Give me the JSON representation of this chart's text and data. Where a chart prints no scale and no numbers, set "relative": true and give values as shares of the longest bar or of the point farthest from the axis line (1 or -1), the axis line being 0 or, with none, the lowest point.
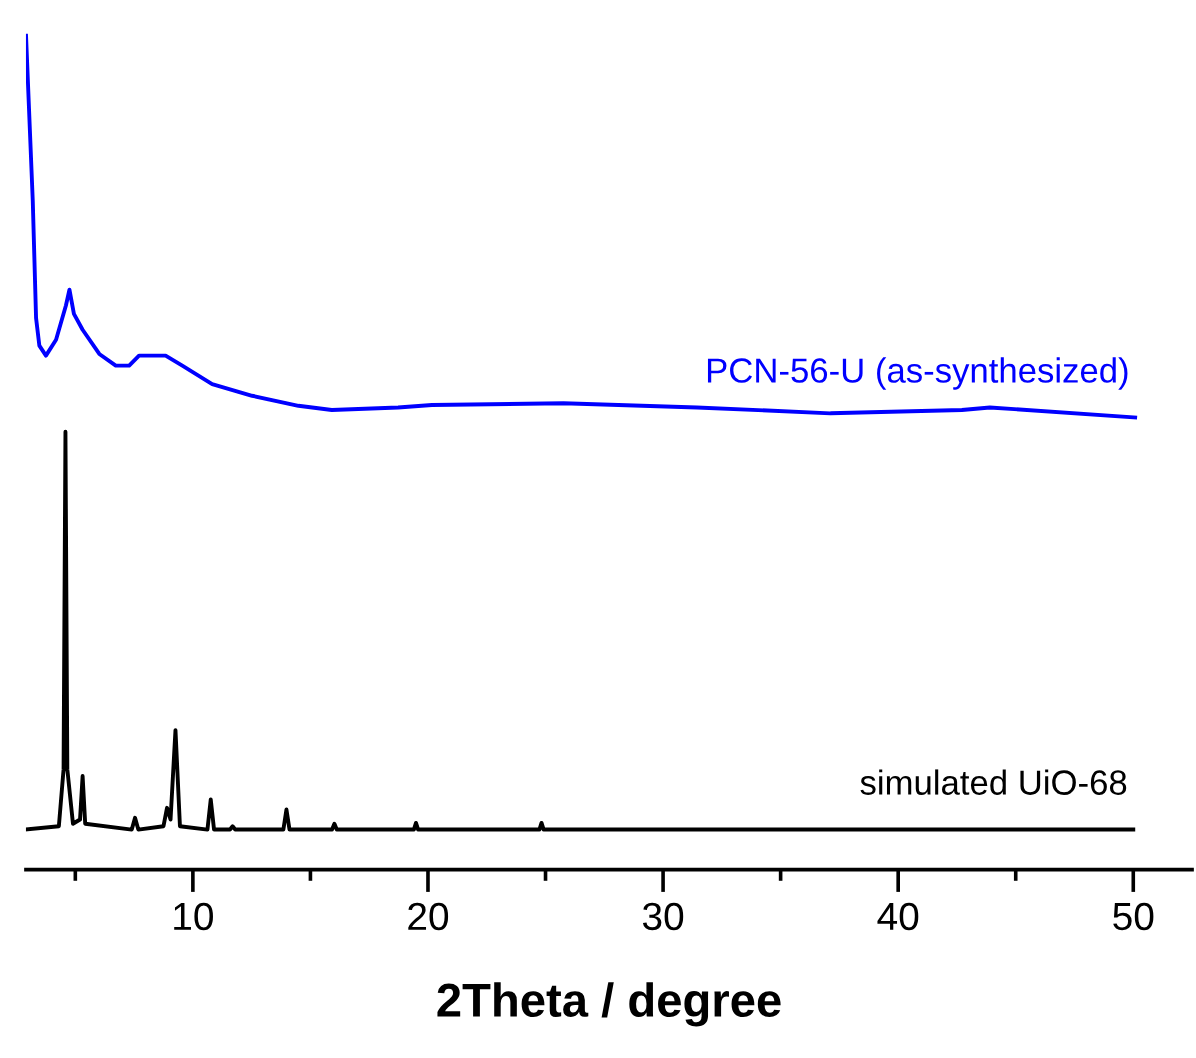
{
  "chart_data": {
    "type": "line",
    "relative": true,
    "xlabel": "2Theta / degree",
    "xlim": [
      2.9,
      52.5
    ],
    "xticks": [
      {
        "value": 5,
        "label": null
      },
      10,
      {
        "value": 15,
        "label": null
      },
      20,
      {
        "value": 25,
        "label": null
      },
      30,
      {
        "value": 35,
        "label": null
      },
      40,
      {
        "value": 45,
        "label": null
      },
      50
    ],
    "tick_labels": "x",
    "grid": false,
    "legend": false,
    "marker": "none",
    "line_style": "solid",
    "series": [
      {
        "name": "PCN-56-U (as-synthesized)",
        "color": "#0000ff",
        "x": [
          2.9,
          3.19,
          3.33,
          3.47,
          3.75,
          4.18,
          4.6,
          4.75,
          4.94,
          5.31,
          6.02,
          6.72,
          7.29,
          7.71,
          8.84,
          9.55,
          10.82,
          12.52,
          14.49,
          15.91,
          18.73,
          20.17,
          25.76,
          31.44,
          37.12,
          42.71,
          43.9,
          50.08
        ],
        "values": [
          1.0,
          0.8,
          0.66,
          0.627,
          0.615,
          0.634,
          0.675,
          0.694,
          0.665,
          0.646,
          0.617,
          0.603,
          0.603,
          0.615,
          0.615,
          0.603,
          0.581,
          0.567,
          0.555,
          0.55,
          0.553,
          0.556,
          0.558,
          0.553,
          0.546,
          0.55,
          0.553,
          0.541
        ]
      },
      {
        "name": "simulated UiO-68",
        "color": "#000000",
        "x": [
          2.9,
          4.3,
          4.5,
          4.58,
          4.66,
          4.9,
          5.2,
          5.31,
          5.42,
          7.4,
          7.54,
          7.68,
          8.75,
          8.9,
          9.05,
          9.26,
          9.45,
          10.62,
          10.76,
          10.9,
          11.58,
          11.69,
          11.8,
          13.85,
          13.98,
          14.11,
          15.92,
          16.02,
          16.12,
          19.4,
          19.49,
          19.58,
          24.74,
          24.83,
          24.92,
          50.0
        ],
        "values": [
          0.048,
          0.052,
          0.12,
          0.524,
          0.12,
          0.055,
          0.06,
          0.112,
          0.055,
          0.048,
          0.062,
          0.048,
          0.052,
          0.074,
          0.06,
          0.167,
          0.052,
          0.048,
          0.084,
          0.048,
          0.048,
          0.052,
          0.048,
          0.048,
          0.072,
          0.048,
          0.048,
          0.055,
          0.048,
          0.048,
          0.056,
          0.048,
          0.048,
          0.056,
          0.048,
          0.048
        ]
      }
    ]
  }
}
